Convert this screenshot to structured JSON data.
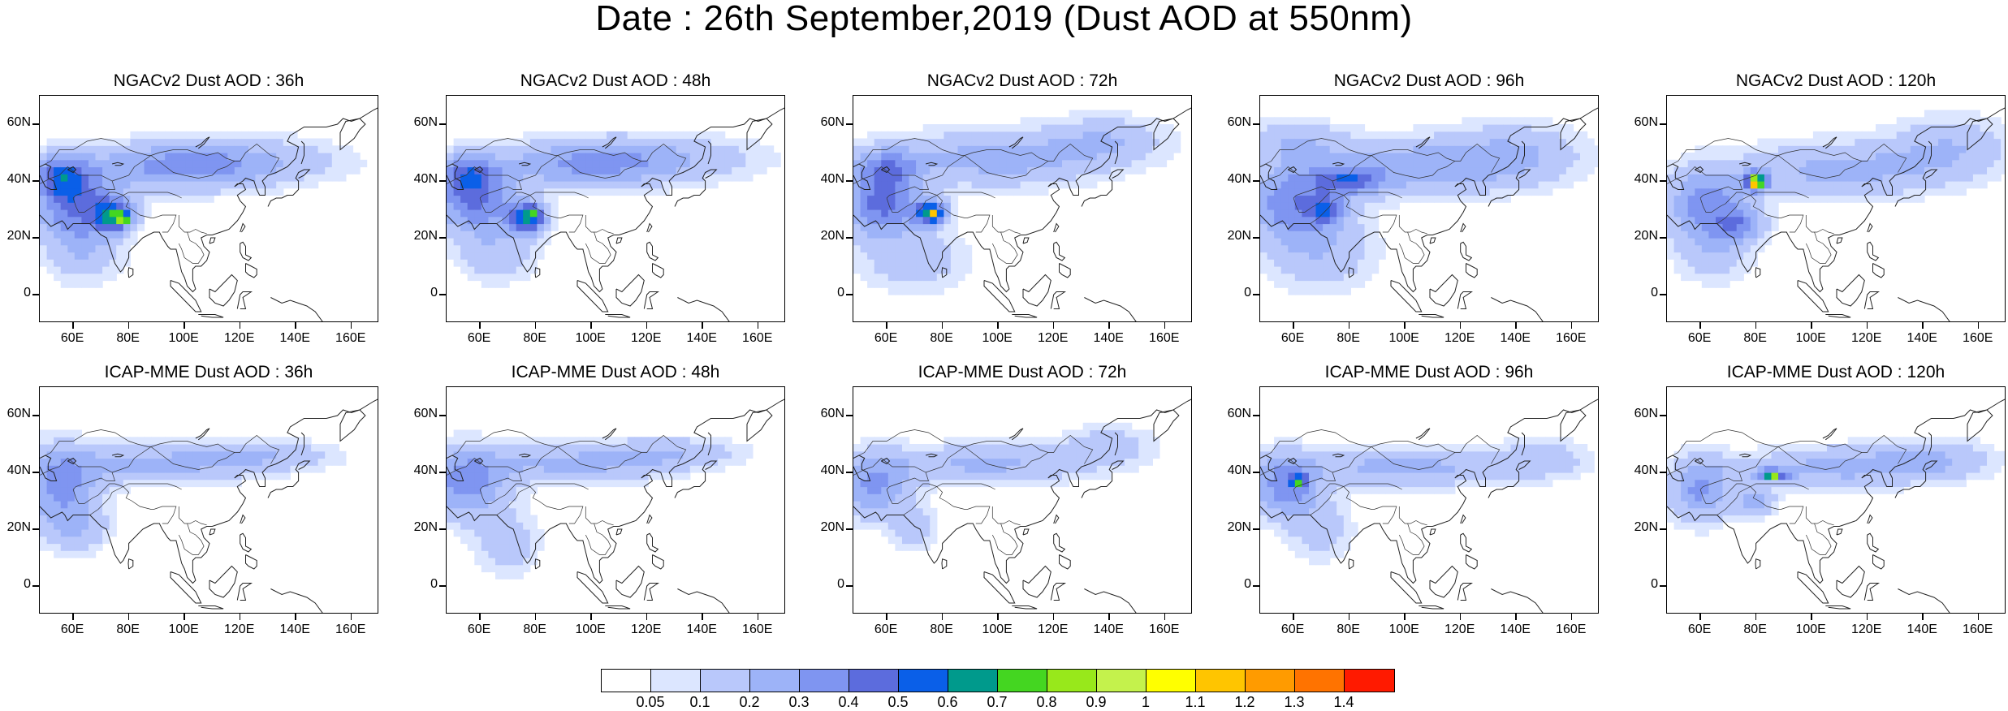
{
  "title": "Date : 26th September,2019 (Dust AOD at 550nm)",
  "lat_labels": [
    "60N",
    "40N",
    "20N",
    "0"
  ],
  "lon_labels": [
    "60E",
    "80E",
    "100E",
    "120E",
    "140E",
    "160E"
  ],
  "panels": [
    {
      "title": "NGACv2 Dust AOD : 36h",
      "hotspot": "Thar desert"
    },
    {
      "title": "NGACv2 Dust AOD : 48h",
      "hotspot": "Thar desert"
    },
    {
      "title": "NGACv2 Dust AOD : 72h",
      "hotspot": "Thar desert"
    },
    {
      "title": "NGACv2 Dust AOD : 96h",
      "hotspot": "Pakistan"
    },
    {
      "title": "NGACv2 Dust AOD : 120h",
      "hotspot": "Taklamakan"
    },
    {
      "title": "ICAP-MME Dust AOD : 36h",
      "hotspot": "none"
    },
    {
      "title": "ICAP-MME Dust AOD : 48h",
      "hotspot": "none"
    },
    {
      "title": "ICAP-MME Dust AOD : 72h",
      "hotspot": "none"
    },
    {
      "title": "ICAP-MME Dust AOD : 96h",
      "hotspot": "Afghanistan"
    },
    {
      "title": "ICAP-MME Dust AOD : 120h",
      "hotspot": "Taklamakan"
    }
  ],
  "colorbar": {
    "labels": [
      "0.05",
      "0.1",
      "0.2",
      "0.3",
      "0.4",
      "0.5",
      "0.6",
      "0.7",
      "0.8",
      "0.9",
      "1",
      "1.1",
      "1.2",
      "1.3",
      "1.4"
    ],
    "colors": [
      "#ffffff",
      "#dce6ff",
      "#b9c8fb",
      "#9db3f8",
      "#7f95f1",
      "#5c6cdd",
      "#0a5fe8",
      "#009a8c",
      "#44d621",
      "#98e81b",
      "#c4f24c",
      "#ffff00",
      "#ffc500",
      "#ff9b00",
      "#ff7300",
      "#ff1a00"
    ]
  }
}
